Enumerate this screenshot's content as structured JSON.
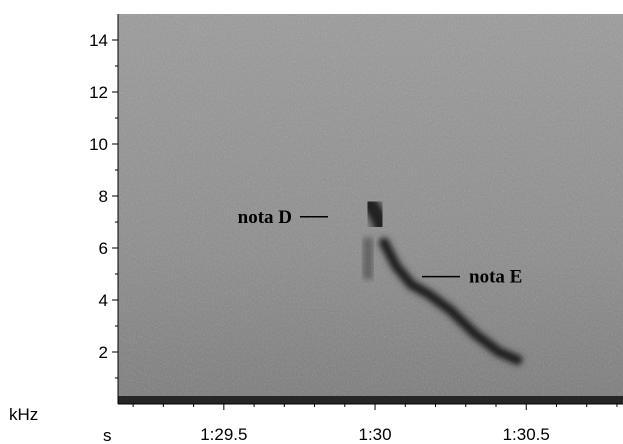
{
  "chart_data": {
    "type": "heatmap",
    "subtype": "spectrogram",
    "title": "",
    "xlabel": "s",
    "ylabel": "kHz",
    "xlim": [
      89.15,
      90.82
    ],
    "ylim": [
      0,
      15
    ],
    "x_ticks": [
      {
        "value": 89.5,
        "label": "1:29.5"
      },
      {
        "value": 90.0,
        "label": "1:30"
      },
      {
        "value": 90.5,
        "label": "1:30.5"
      }
    ],
    "y_ticks": [
      {
        "value": 2,
        "label": "2"
      },
      {
        "value": 4,
        "label": "4"
      },
      {
        "value": 6,
        "label": "6"
      },
      {
        "value": 8,
        "label": "8"
      },
      {
        "value": 10,
        "label": "10"
      },
      {
        "value": 12,
        "label": "12"
      },
      {
        "value": 14,
        "label": "14"
      }
    ],
    "grid": false,
    "colormap": "grayscale (dark = high energy)",
    "background_color": "#8a8a8a",
    "signal_color": "#141414",
    "features": [
      {
        "name": "nota D",
        "label": "nota D",
        "contour": [
          [
            89.98,
            7.7
          ],
          [
            89.99,
            7.6
          ],
          [
            90.01,
            7.2
          ],
          [
            90.02,
            6.9
          ]
        ],
        "start_s": 89.97,
        "end_s": 90.03,
        "freq_range_khz": [
          4.8,
          7.9
        ]
      },
      {
        "name": "nota E",
        "label": "nota E",
        "contour": [
          [
            90.03,
            6.2
          ],
          [
            90.07,
            5.3
          ],
          [
            90.12,
            4.6
          ],
          [
            90.18,
            4.2
          ],
          [
            90.25,
            3.6
          ],
          [
            90.33,
            2.7
          ],
          [
            90.41,
            2.0
          ],
          [
            90.47,
            1.7
          ]
        ],
        "start_s": 90.03,
        "end_s": 90.48,
        "freq_range_khz": [
          1.6,
          6.3
        ]
      }
    ]
  }
}
